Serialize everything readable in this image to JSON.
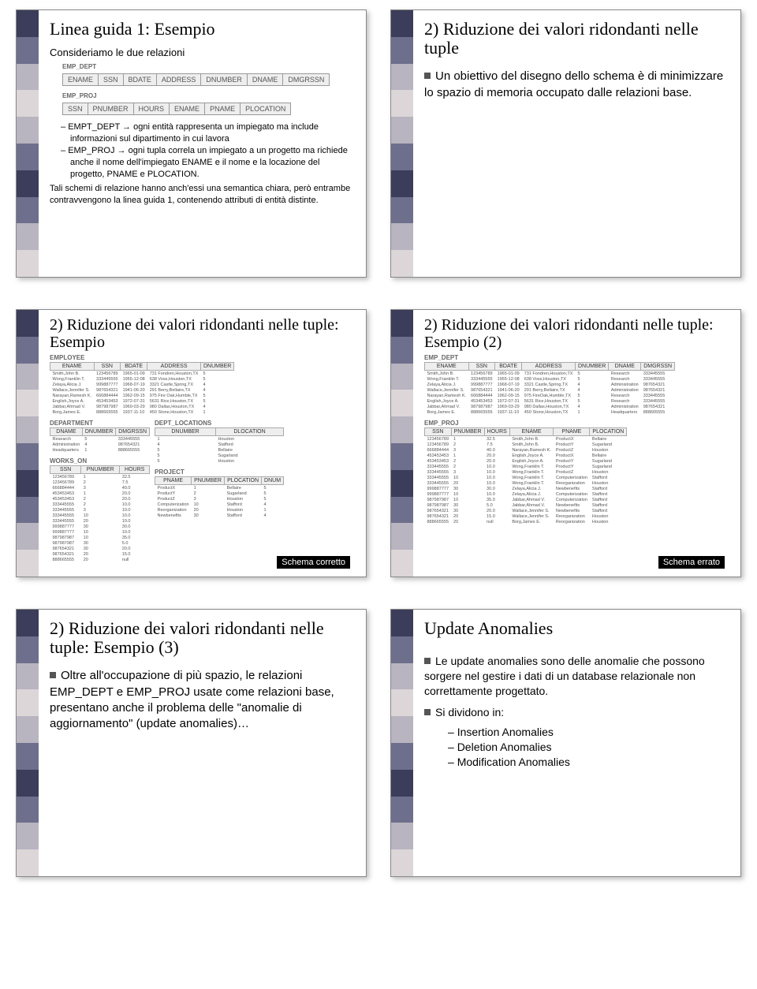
{
  "stripe_colors": [
    "#3b3d5a",
    "#6e6f8c",
    "#b8b4c0",
    "#dcd6d8",
    "#b8b4c0",
    "#6e6f8c",
    "#3b3d5a",
    "#6e6f8c",
    "#b8b4c0",
    "#dcd6d8"
  ],
  "slides": {
    "s1": {
      "title": "Linea guida 1: Esempio",
      "subtitle": "Consideriamo le due relazioni",
      "emp_dept_label": "EMP_DEPT",
      "emp_dept_cols": [
        "ENAME",
        "SSN",
        "BDATE",
        "ADDRESS",
        "DNUMBER",
        "DNAME",
        "DMGRSSN"
      ],
      "emp_proj_label": "EMP_PROJ",
      "emp_proj_cols": [
        "SSN",
        "PNUMBER",
        "HOURS",
        "ENAME",
        "PNAME",
        "PLOCATION"
      ],
      "bullet1": "EMPT_DEPT → ogni entità rappresenta un impiegato ma include informazioni sul dipartimento in cui lavora",
      "bullet2": "EMP_PROJ → ogni tupla correla un impiegato a un progetto ma richiede anche il nome dell'impiegato ENAME e il nome e la locazione del progetto, PNAME e PLOCATION.",
      "tail": "Tali schemi di relazione hanno anch'essi una semantica chiara, però entrambe contravvengono la linea guida 1, contenendo attributi di entità distinte."
    },
    "s2": {
      "title": "2) Riduzione dei valori ridondanti nelle tuple",
      "bullet": "Un obiettivo del disegno dello schema è di minimizzare lo spazio di memoria occupato dalle relazioni base."
    },
    "s3": {
      "title": "2) Riduzione dei valori ridondanti nelle tuple: Esempio",
      "employee_label": "EMPLOYEE",
      "employee_cols": [
        "ENAME",
        "SSN",
        "BDATE",
        "ADDRESS",
        "DNUMBER"
      ],
      "employee_rows": [
        [
          "Smith,John B.",
          "123456789",
          "1965-01-09",
          "731 Fondren,Houston,TX",
          "5"
        ],
        [
          "Wong,Franklin T.",
          "333445555",
          "1955-12-08",
          "638 Voss,Houston,TX",
          "5"
        ],
        [
          "Zelaya,Alicia J.",
          "999887777",
          "1968-07-19",
          "3321 Castle,Spring,TX",
          "4"
        ],
        [
          "Wallace,Jennifer S.",
          "987654321",
          "1941-06-20",
          "291 Berry,Bellaire,TX",
          "4"
        ],
        [
          "Narayan,Ramesh K.",
          "666884444",
          "1962-09-15",
          "975 Fire Oak,Humble,TX",
          "5"
        ],
        [
          "English,Joyce A.",
          "453453453",
          "1972-07-31",
          "5631 Rice,Houston,TX",
          "5"
        ],
        [
          "Jabbar,Ahmad V.",
          "987987987",
          "1969-03-29",
          "980 Dallas,Houston,TX",
          "4"
        ],
        [
          "Borg,James E.",
          "888665555",
          "1937-11-10",
          "450 Stone,Houston,TX",
          "1"
        ]
      ],
      "department_label": "DEPARTMENT",
      "department_cols": [
        "DNAME",
        "DNUMBER",
        "DMGRSSN"
      ],
      "department_rows": [
        [
          "Research",
          "5",
          "333445555"
        ],
        [
          "Administration",
          "4",
          "987654321"
        ],
        [
          "Headquarters",
          "1",
          "888665555"
        ]
      ],
      "dept_loc_label": "DEPT_LOCATIONS",
      "dept_loc_cols": [
        "DNUMBER",
        "DLOCATION"
      ],
      "dept_loc_rows": [
        [
          "1",
          "Houston"
        ],
        [
          "4",
          "Stafford"
        ],
        [
          "5",
          "Bellaire"
        ],
        [
          "5",
          "Sugarland"
        ],
        [
          "5",
          "Houston"
        ]
      ],
      "works_on_label": "WORKS_ON",
      "works_on_cols": [
        "SSN",
        "PNUMBER",
        "HOURS"
      ],
      "works_on_rows": [
        [
          "123456789",
          "1",
          "32.5"
        ],
        [
          "123456789",
          "2",
          "7.5"
        ],
        [
          "666884444",
          "3",
          "40.0"
        ],
        [
          "453453453",
          "1",
          "20.0"
        ],
        [
          "453453453",
          "2",
          "20.0"
        ],
        [
          "333445555",
          "2",
          "10.0"
        ],
        [
          "333445555",
          "3",
          "10.0"
        ],
        [
          "333445555",
          "10",
          "10.0"
        ],
        [
          "333445555",
          "20",
          "10.0"
        ],
        [
          "999887777",
          "30",
          "30.0"
        ],
        [
          "999887777",
          "10",
          "10.0"
        ],
        [
          "987987987",
          "10",
          "35.0"
        ],
        [
          "987987987",
          "30",
          "5.0"
        ],
        [
          "987654321",
          "30",
          "20.0"
        ],
        [
          "987654321",
          "20",
          "15.0"
        ],
        [
          "888665555",
          "20",
          "null"
        ]
      ],
      "project_label": "PROJECT",
      "project_cols": [
        "PNAME",
        "PNUMBER",
        "PLOCATION",
        "DNUM"
      ],
      "project_rows": [
        [
          "ProductX",
          "1",
          "Bellaire",
          "5"
        ],
        [
          "ProductY",
          "2",
          "Sugarland",
          "5"
        ],
        [
          "ProductZ",
          "3",
          "Houston",
          "5"
        ],
        [
          "Computerization",
          "10",
          "Stafford",
          "4"
        ],
        [
          "Reorganization",
          "20",
          "Houston",
          "1"
        ],
        [
          "Newbenefits",
          "30",
          "Stafford",
          "4"
        ]
      ],
      "caption": "Schema corretto"
    },
    "s4": {
      "title": "2) Riduzione dei valori ridondanti nelle tuple: Esempio (2)",
      "emp_dept_label": "EMP_DEPT",
      "emp_dept_cols": [
        "ENAME",
        "SSN",
        "BDATE",
        "ADDRESS",
        "DNUMBER",
        "DNAME",
        "DMGRSSN"
      ],
      "emp_dept_rows": [
        [
          "Smith,John B.",
          "123456789",
          "1965-01-09",
          "731 Fondren,Houston,TX",
          "5",
          "Research",
          "333445555"
        ],
        [
          "Wong,Franklin T.",
          "333445555",
          "1955-12-08",
          "638 Voss,Houston,TX",
          "5",
          "Research",
          "333445555"
        ],
        [
          "Zelaya,Alicia J.",
          "999887777",
          "1968-07-19",
          "3321 Castle,Spring,TX",
          "4",
          "Administration",
          "987654321"
        ],
        [
          "Wallace,Jennifer S.",
          "987654321",
          "1941-06-20",
          "291 Berry,Bellaire,TX",
          "4",
          "Administration",
          "987654321"
        ],
        [
          "Narayan,Ramesh K.",
          "666884444",
          "1962-09-15",
          "975 FireOak,Humble,TX",
          "5",
          "Research",
          "333445555"
        ],
        [
          "English,Joyce A.",
          "453453453",
          "1972-07-31",
          "5631 Rice,Houston,TX",
          "5",
          "Research",
          "333445555"
        ],
        [
          "Jabbar,Ahmad V.",
          "987987987",
          "1969-03-29",
          "980 Dallas,Houston,TX",
          "4",
          "Administration",
          "987654321"
        ],
        [
          "Borg,James E.",
          "888665555",
          "1937-11-10",
          "450 Stone,Houston,TX",
          "1",
          "Headquarters",
          "888665555"
        ]
      ],
      "emp_proj_label": "EMP_PROJ",
      "emp_proj_cols": [
        "SSN",
        "PNUMBER",
        "HOURS",
        "ENAME",
        "PNAME",
        "PLOCATION"
      ],
      "emp_proj_rows": [
        [
          "123456789",
          "1",
          "32.5",
          "Smith,John B.",
          "ProductX",
          "Bellaire"
        ],
        [
          "123456789",
          "2",
          "7.5",
          "Smith,John B.",
          "ProductY",
          "Sugarland"
        ],
        [
          "666884444",
          "3",
          "40.0",
          "Narayan,Ramesh K.",
          "ProductZ",
          "Houston"
        ],
        [
          "453453453",
          "1",
          "20.0",
          "English,Joyce A.",
          "ProductX",
          "Bellaire"
        ],
        [
          "453453453",
          "2",
          "20.0",
          "English,Joyce A.",
          "ProductY",
          "Sugarland"
        ],
        [
          "333445555",
          "2",
          "10.0",
          "Wong,Franklin T.",
          "ProductY",
          "Sugarland"
        ],
        [
          "333445555",
          "3",
          "10.0",
          "Wong,Franklin T.",
          "ProductZ",
          "Houston"
        ],
        [
          "333445555",
          "10",
          "10.0",
          "Wong,Franklin T.",
          "Computerization",
          "Stafford"
        ],
        [
          "333445555",
          "20",
          "10.0",
          "Wong,Franklin T.",
          "Reorganization",
          "Houston"
        ],
        [
          "999887777",
          "30",
          "30.0",
          "Zelaya,Alicia J.",
          "Newbenefits",
          "Stafford"
        ],
        [
          "999887777",
          "10",
          "10.0",
          "Zelaya,Alicia J.",
          "Computerization",
          "Stafford"
        ],
        [
          "987987987",
          "10",
          "35.0",
          "Jabbar,Ahmad V.",
          "Computerization",
          "Stafford"
        ],
        [
          "987987987",
          "30",
          "5.0",
          "Jabbar,Ahmad V.",
          "Newbenefits",
          "Stafford"
        ],
        [
          "987654321",
          "30",
          "20.0",
          "Wallace,Jennifer S.",
          "Newbenefits",
          "Stafford"
        ],
        [
          "987654321",
          "20",
          "15.0",
          "Wallace,Jennifer S.",
          "Reorganization",
          "Houston"
        ],
        [
          "888665555",
          "20",
          "null",
          "Borg,James E.",
          "Reorganization",
          "Houston"
        ]
      ],
      "caption": "Schema errato"
    },
    "s5": {
      "title": "2) Riduzione dei valori ridondanti nelle tuple: Esempio (3)",
      "bullet": "Oltre all'occupazione di più spazio, le relazioni EMP_DEPT e EMP_PROJ usate come relazioni base, presentano anche il problema delle \"anomalie di aggiornamento\" (update anomalies)…"
    },
    "s6": {
      "title": "Update Anomalies",
      "bullet1": "Le update anomalies sono delle anomalie che possono sorgere nel gestire i dati di un database relazionale non correttamente progettato.",
      "bullet2": "Si dividono in:",
      "sub1": "Insertion Anomalies",
      "sub2": "Deletion Anomalies",
      "sub3": "Modification Anomalies"
    }
  }
}
